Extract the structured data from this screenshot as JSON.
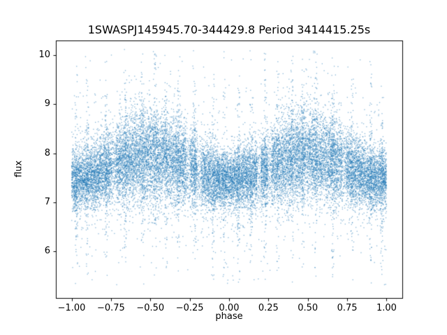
{
  "chart_data": {
    "type": "scatter",
    "title": "1SWASPJ145945.70-344429.8 Period 3414415.25s",
    "xlabel": "phase",
    "ylabel": "flux",
    "xlim": [
      -1.1,
      1.1
    ],
    "ylim": [
      5.05,
      10.3
    ],
    "x_tick_values": [
      -1.0,
      -0.75,
      -0.5,
      -0.25,
      0.0,
      0.25,
      0.5,
      0.75,
      1.0
    ],
    "x_tick_labels": [
      "−1.00",
      "−0.75",
      "−0.50",
      "−0.25",
      "0.00",
      "0.25",
      "0.50",
      "0.75",
      "1.00"
    ],
    "y_tick_values": [
      6,
      7,
      8,
      9,
      10
    ],
    "y_tick_labels": [
      "6",
      "7",
      "8",
      "9",
      "10"
    ],
    "grid": false,
    "legend": null,
    "marker_color": "#1f77b4",
    "marker_alpha": 0.55,
    "marker_size": 1.3,
    "series_summary": "Folded stellar light curve, ~20000 unlabeled points. Dense flux band ~6.9-8.3 centered near 7.5 around phase 0 and +/-1; cloud brightens and widens near phase +/-0.5 reaching ~9.3; sparse vertical streaks of outliers spanning ~5.4 up to ~10.1 at many phases.",
    "generation": {
      "seed": 7,
      "n_points": 24000,
      "base_flux": 7.45,
      "modulation_amplitude": 0.5,
      "noise_sigma": 0.3,
      "noise_sigma_modulation": 0.18,
      "outlier_fraction": 0.05,
      "outlier_sigma": 1.05,
      "streak_fraction": 0.08,
      "streak_sigma": 1.1,
      "streak_phases": [
        -0.97,
        -0.9,
        -0.78,
        -0.66,
        -0.55,
        -0.47,
        -0.4,
        -0.32,
        -0.22,
        -0.1,
        -0.03,
        0.06,
        0.14,
        0.23,
        0.31,
        0.4,
        0.47,
        0.55,
        0.66,
        0.78,
        0.9,
        0.97
      ],
      "gap_phases": [
        -0.73,
        -0.26,
        -0.19,
        0.19,
        0.26,
        0.73
      ],
      "gap_half_width": 0.012,
      "gap_rejection": 0.6,
      "flux_min": 5.32,
      "flux_max": 10.12
    }
  }
}
